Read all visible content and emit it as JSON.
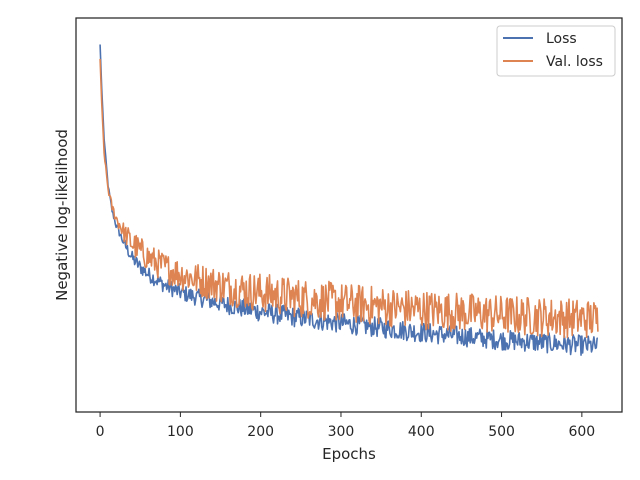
{
  "chart_data": {
    "type": "line",
    "xlabel": "Epochs",
    "ylabel": "Negative log-likelihood",
    "xlim": [
      -30,
      650
    ],
    "ylim": [
      0,
      1
    ],
    "x_ticks": [
      0,
      100,
      200,
      300,
      400,
      500,
      600
    ],
    "y_ticks_shown": false,
    "grid": false,
    "legend_position": "top-right",
    "series": [
      {
        "name": "Loss",
        "color": "#4c72b0",
        "x": [
          0,
          2,
          5,
          10,
          15,
          20,
          30,
          40,
          50,
          60,
          70,
          80,
          90,
          100,
          120,
          140,
          160,
          180,
          200,
          220,
          240,
          260,
          280,
          300,
          320,
          340,
          360,
          380,
          400,
          420,
          440,
          460,
          480,
          500,
          520,
          540,
          560,
          580,
          600,
          620
        ],
        "y": [
          0.96,
          0.84,
          0.7,
          0.57,
          0.5,
          0.46,
          0.41,
          0.37,
          0.345,
          0.325,
          0.31,
          0.295,
          0.285,
          0.275,
          0.262,
          0.25,
          0.24,
          0.23,
          0.222,
          0.215,
          0.208,
          0.202,
          0.196,
          0.19,
          0.185,
          0.18,
          0.175,
          0.17,
          0.165,
          0.16,
          0.156,
          0.152,
          0.148,
          0.144,
          0.141,
          0.138,
          0.135,
          0.132,
          0.129,
          0.126
        ]
      },
      {
        "name": "Val. loss",
        "color": "#dd8452",
        "x": [
          0,
          2,
          5,
          10,
          15,
          20,
          30,
          40,
          50,
          60,
          70,
          80,
          90,
          100,
          120,
          140,
          160,
          180,
          200,
          220,
          240,
          260,
          280,
          300,
          320,
          340,
          360,
          380,
          400,
          420,
          440,
          460,
          480,
          500,
          520,
          540,
          560,
          580,
          600,
          620
        ],
        "y": [
          0.92,
          0.8,
          0.66,
          0.56,
          0.51,
          0.48,
          0.44,
          0.41,
          0.39,
          0.372,
          0.357,
          0.345,
          0.335,
          0.326,
          0.312,
          0.3,
          0.29,
          0.282,
          0.275,
          0.268,
          0.262,
          0.257,
          0.252,
          0.247,
          0.243,
          0.239,
          0.235,
          0.231,
          0.228,
          0.225,
          0.222,
          0.219,
          0.216,
          0.213,
          0.211,
          0.209,
          0.207,
          0.205,
          0.203,
          0.201
        ]
      }
    ]
  }
}
